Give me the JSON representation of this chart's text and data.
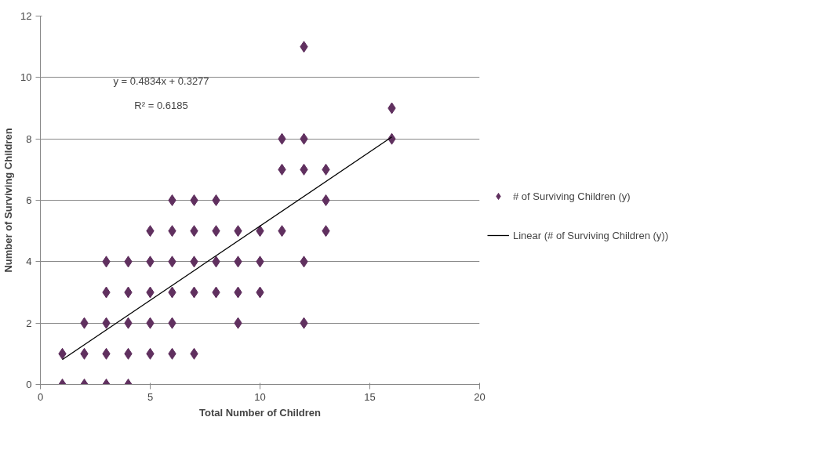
{
  "chart_data": {
    "type": "scatter",
    "xlabel": "Total Number of Children",
    "ylabel": "Number of Surviving Children",
    "annotations": [
      "y = 0.4834x + 0.3277",
      "R² = 0.6185"
    ],
    "series": [
      {
        "name": "# of Surviving Children (y)",
        "marker": "diamond",
        "color": "#60305f",
        "x": [
          1,
          2,
          3,
          4,
          1,
          2,
          3,
          4,
          5,
          6,
          7,
          2,
          3,
          4,
          5,
          6,
          9,
          12,
          3,
          4,
          5,
          6,
          7,
          8,
          9,
          10,
          3,
          4,
          5,
          6,
          7,
          8,
          9,
          10,
          12,
          5,
          6,
          7,
          8,
          9,
          10,
          11,
          13,
          6,
          7,
          8,
          13,
          11,
          12,
          13,
          11,
          12,
          16,
          16,
          12
        ],
        "values": [
          0,
          0,
          0,
          0,
          1,
          1,
          1,
          1,
          1,
          1,
          1,
          2,
          2,
          2,
          2,
          2,
          2,
          2,
          3,
          3,
          3,
          3,
          3,
          3,
          3,
          3,
          4,
          4,
          4,
          4,
          4,
          4,
          4,
          4,
          4,
          5,
          5,
          5,
          5,
          5,
          5,
          5,
          5,
          6,
          6,
          6,
          6,
          7,
          7,
          7,
          8,
          8,
          8,
          9,
          11
        ]
      },
      {
        "name": "Linear (# of Surviving Children (y))",
        "type": "line",
        "color": "#000000",
        "x": [
          1,
          16
        ],
        "values": [
          0.81,
          8.06
        ]
      }
    ],
    "xlim": [
      0,
      20
    ],
    "xticks": [
      0,
      5,
      10,
      15,
      20
    ],
    "ylim": [
      0,
      12
    ],
    "yticks": [
      0,
      2,
      4,
      6,
      8,
      10,
      12
    ],
    "grid": "y",
    "legend": "right"
  }
}
